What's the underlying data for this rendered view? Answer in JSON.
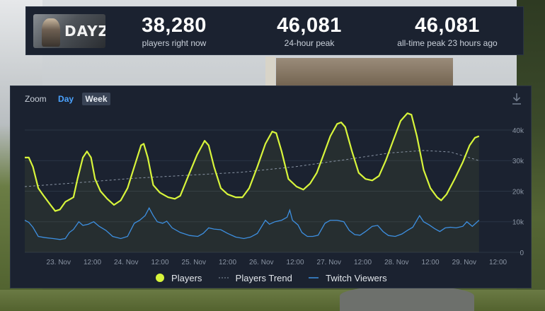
{
  "game": {
    "logo_text": "DAYZ"
  },
  "stats": {
    "players_now": {
      "value": "38,280",
      "label": "players right now"
    },
    "peak_24h": {
      "value": "46,081",
      "label": "24-hour peak"
    },
    "all_time": {
      "value": "46,081",
      "label": "all-time peak 23 hours ago"
    }
  },
  "zoom": {
    "label": "Zoom",
    "day": "Day",
    "week": "Week"
  },
  "colors": {
    "players": "#d8f53b",
    "trend": "#8a95a5",
    "twitch": "#3d8fe0",
    "panel": "#1b2230"
  },
  "chart_data": {
    "type": "line",
    "x_ticks": [
      "23. Nov",
      "12:00",
      "24. Nov",
      "12:00",
      "25. Nov",
      "12:00",
      "26. Nov",
      "12:00",
      "27. Nov",
      "12:00",
      "28. Nov",
      "12:00",
      "29. Nov",
      "12:00"
    ],
    "y_ticks": [
      "0",
      "10k",
      "20k",
      "30k",
      "40k"
    ],
    "ylim": [
      0,
      46000
    ],
    "xlim": [
      0,
      7.35
    ],
    "grid": true,
    "legend_position": "bottom",
    "series": [
      {
        "name": "Players",
        "values": [
          [
            0.0,
            31000
          ],
          [
            0.06,
            31000
          ],
          [
            0.12,
            28000
          ],
          [
            0.2,
            21000
          ],
          [
            0.28,
            18500
          ],
          [
            0.38,
            15500
          ],
          [
            0.45,
            13500
          ],
          [
            0.52,
            14000
          ],
          [
            0.6,
            16500
          ],
          [
            0.68,
            17500
          ],
          [
            0.72,
            18000
          ],
          [
            0.78,
            24000
          ],
          [
            0.86,
            31000
          ],
          [
            0.92,
            33000
          ],
          [
            0.98,
            31000
          ],
          [
            1.04,
            24000
          ],
          [
            1.12,
            20000
          ],
          [
            1.22,
            17500
          ],
          [
            1.32,
            15500
          ],
          [
            1.42,
            17000
          ],
          [
            1.52,
            21000
          ],
          [
            1.62,
            28000
          ],
          [
            1.72,
            35000
          ],
          [
            1.76,
            35500
          ],
          [
            1.82,
            31000
          ],
          [
            1.9,
            22000
          ],
          [
            2.0,
            19500
          ],
          [
            2.12,
            18000
          ],
          [
            2.22,
            17500
          ],
          [
            2.3,
            18500
          ],
          [
            2.42,
            25000
          ],
          [
            2.55,
            32000
          ],
          [
            2.66,
            36500
          ],
          [
            2.72,
            35000
          ],
          [
            2.8,
            28000
          ],
          [
            2.9,
            21000
          ],
          [
            3.0,
            19000
          ],
          [
            3.12,
            18000
          ],
          [
            3.22,
            18000
          ],
          [
            3.32,
            21000
          ],
          [
            3.44,
            28000
          ],
          [
            3.56,
            35500
          ],
          [
            3.66,
            39500
          ],
          [
            3.72,
            39000
          ],
          [
            3.8,
            33000
          ],
          [
            3.9,
            24000
          ],
          [
            4.02,
            21500
          ],
          [
            4.12,
            20500
          ],
          [
            4.22,
            22500
          ],
          [
            4.32,
            26000
          ],
          [
            4.42,
            32000
          ],
          [
            4.52,
            38000
          ],
          [
            4.62,
            42000
          ],
          [
            4.68,
            42500
          ],
          [
            4.74,
            41000
          ],
          [
            4.84,
            33000
          ],
          [
            4.94,
            26000
          ],
          [
            5.04,
            24000
          ],
          [
            5.14,
            23500
          ],
          [
            5.24,
            25000
          ],
          [
            5.34,
            30000
          ],
          [
            5.44,
            36000
          ],
          [
            5.56,
            43000
          ],
          [
            5.66,
            45500
          ],
          [
            5.72,
            45000
          ],
          [
            5.8,
            38000
          ],
          [
            5.9,
            27000
          ],
          [
            6.0,
            21000
          ],
          [
            6.1,
            18000
          ],
          [
            6.16,
            17000
          ],
          [
            6.24,
            19000
          ],
          [
            6.36,
            24000
          ],
          [
            6.48,
            29500
          ],
          [
            6.58,
            35000
          ],
          [
            6.66,
            37500
          ],
          [
            6.72,
            38000
          ]
        ]
      },
      {
        "name": "Players Trend",
        "values": [
          [
            0.0,
            21500
          ],
          [
            0.8,
            22800
          ],
          [
            1.6,
            24200
          ],
          [
            2.4,
            25200
          ],
          [
            3.2,
            26200
          ],
          [
            4.0,
            28000
          ],
          [
            4.8,
            30500
          ],
          [
            5.4,
            32500
          ],
          [
            5.9,
            33300
          ],
          [
            6.3,
            32800
          ],
          [
            6.72,
            30000
          ]
        ]
      },
      {
        "name": "Twitch Viewers",
        "values": [
          [
            0.0,
            10500
          ],
          [
            0.06,
            9800
          ],
          [
            0.12,
            8200
          ],
          [
            0.2,
            5200
          ],
          [
            0.3,
            4800
          ],
          [
            0.42,
            4500
          ],
          [
            0.52,
            4200
          ],
          [
            0.6,
            4500
          ],
          [
            0.66,
            6500
          ],
          [
            0.72,
            7500
          ],
          [
            0.8,
            10000
          ],
          [
            0.86,
            8800
          ],
          [
            0.94,
            9200
          ],
          [
            1.02,
            10000
          ],
          [
            1.1,
            8500
          ],
          [
            1.2,
            7200
          ],
          [
            1.3,
            5200
          ],
          [
            1.42,
            4500
          ],
          [
            1.52,
            5200
          ],
          [
            1.62,
            9500
          ],
          [
            1.7,
            10500
          ],
          [
            1.78,
            12000
          ],
          [
            1.84,
            14500
          ],
          [
            1.9,
            12000
          ],
          [
            1.96,
            10000
          ],
          [
            2.04,
            9500
          ],
          [
            2.1,
            10200
          ],
          [
            2.18,
            8000
          ],
          [
            2.3,
            6500
          ],
          [
            2.44,
            5500
          ],
          [
            2.56,
            5200
          ],
          [
            2.64,
            6200
          ],
          [
            2.72,
            8000
          ],
          [
            2.8,
            7600
          ],
          [
            2.9,
            7400
          ],
          [
            3.0,
            6200
          ],
          [
            3.12,
            5000
          ],
          [
            3.24,
            4500
          ],
          [
            3.34,
            5000
          ],
          [
            3.44,
            6200
          ],
          [
            3.56,
            10500
          ],
          [
            3.62,
            9200
          ],
          [
            3.7,
            10000
          ],
          [
            3.8,
            10500
          ],
          [
            3.88,
            11500
          ],
          [
            3.92,
            13800
          ],
          [
            3.96,
            10500
          ],
          [
            4.04,
            9000
          ],
          [
            4.1,
            6500
          ],
          [
            4.18,
            5200
          ],
          [
            4.26,
            5200
          ],
          [
            4.34,
            5600
          ],
          [
            4.44,
            9500
          ],
          [
            4.52,
            10500
          ],
          [
            4.62,
            10500
          ],
          [
            4.72,
            10000
          ],
          [
            4.8,
            7200
          ],
          [
            4.88,
            5800
          ],
          [
            4.96,
            5600
          ],
          [
            5.04,
            6800
          ],
          [
            5.14,
            8500
          ],
          [
            5.22,
            8800
          ],
          [
            5.3,
            6800
          ],
          [
            5.38,
            5500
          ],
          [
            5.48,
            5200
          ],
          [
            5.58,
            6000
          ],
          [
            5.66,
            7200
          ],
          [
            5.74,
            8200
          ],
          [
            5.8,
            10500
          ],
          [
            5.84,
            12000
          ],
          [
            5.9,
            10000
          ],
          [
            5.98,
            9000
          ],
          [
            6.06,
            7800
          ],
          [
            6.14,
            6800
          ],
          [
            6.22,
            8000
          ],
          [
            6.3,
            8200
          ],
          [
            6.38,
            8000
          ],
          [
            6.48,
            8500
          ],
          [
            6.54,
            10000
          ],
          [
            6.62,
            8500
          ],
          [
            6.72,
            10500
          ]
        ]
      }
    ]
  }
}
